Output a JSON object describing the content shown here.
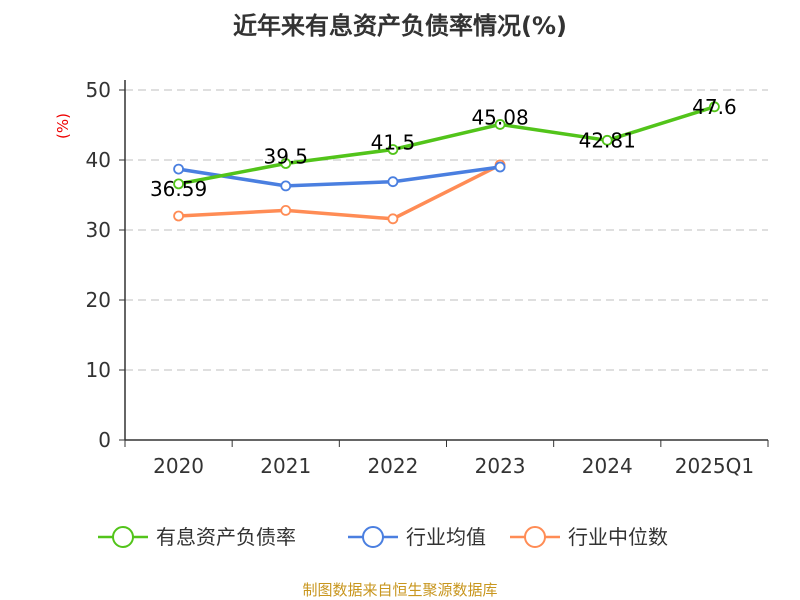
{
  "chart_data": {
    "type": "line",
    "title": "近年来有息资产负债率情况(%)",
    "ylabel": "(%)",
    "xlabel": "",
    "categories": [
      "2020",
      "2021",
      "2022",
      "2023",
      "2024",
      "2025Q1"
    ],
    "ylim": [
      0,
      50
    ],
    "yticks": [
      0,
      10,
      20,
      30,
      40,
      50
    ],
    "grid": true,
    "legend_position": "bottom",
    "series": [
      {
        "name": "有息资产负债率",
        "color": "#52c41a",
        "values": [
          36.59,
          39.5,
          41.5,
          45.08,
          42.81,
          47.6
        ],
        "labels": [
          "36.59",
          "39.5",
          "41.5",
          "45.08",
          "42.81",
          "47.6"
        ]
      },
      {
        "name": "行业均值",
        "color": "#4a7fe0",
        "values": [
          38.7,
          36.3,
          36.9,
          39.0,
          null,
          null
        ]
      },
      {
        "name": "行业中位数",
        "color": "#ff8c55",
        "values": [
          32.0,
          32.8,
          31.6,
          39.3,
          null,
          null
        ]
      }
    ]
  },
  "source": "制图数据来自恒生聚源数据库"
}
